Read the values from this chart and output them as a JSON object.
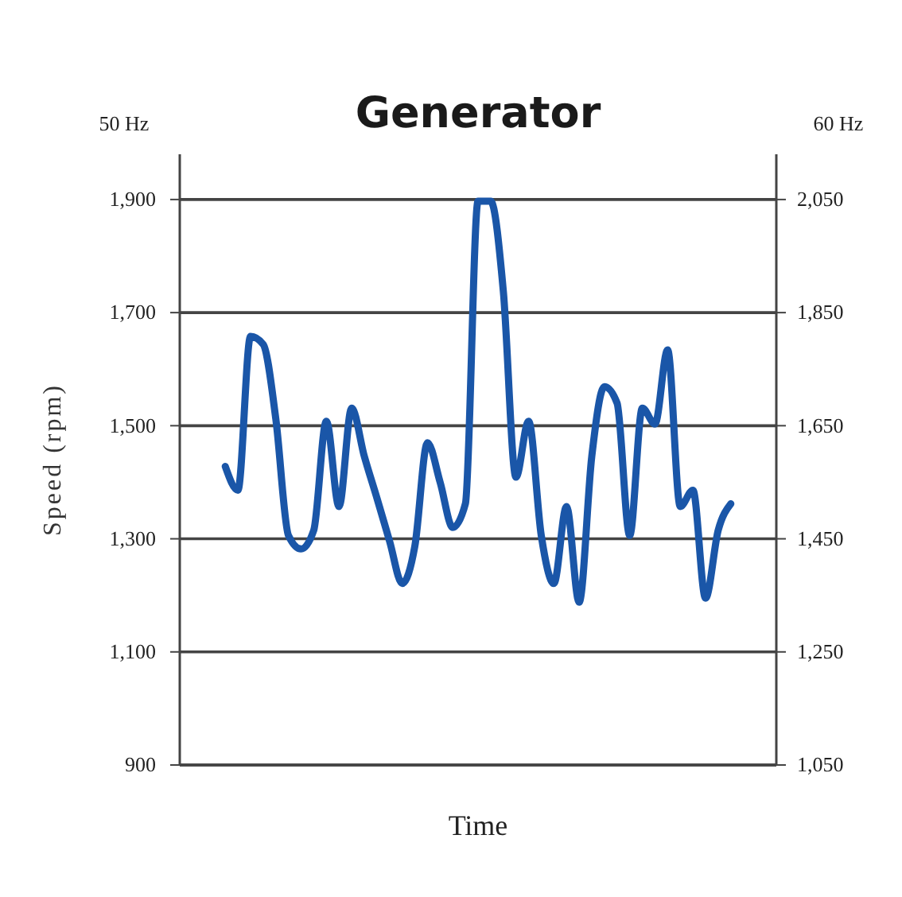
{
  "chart_data": {
    "type": "line",
    "title": "Generator",
    "xlabel": "Time",
    "ylabel": "Speed (rpm)",
    "annotations": [
      "50 Hz",
      "60 Hz"
    ],
    "categories": [
      null,
      null,
      null,
      null,
      null,
      null,
      null,
      null,
      null,
      null,
      null,
      null,
      null,
      null,
      null,
      null,
      null,
      null,
      null,
      null,
      null,
      null,
      null,
      null,
      null,
      null,
      null,
      null,
      null,
      null,
      null,
      null,
      null,
      null,
      null,
      null,
      null,
      null,
      null,
      null,
      null
    ],
    "series": [
      {
        "color": "#1a56a8",
        "values": [
          1428,
          1386,
          1658,
          1644,
          1512,
          1306,
          1282,
          1315,
          1508,
          1357,
          1531,
          1446,
          1372,
          1296,
          1221,
          1287,
          1470,
          1400,
          1320,
          1362,
          1897,
          1897,
          1738,
          1409,
          1508,
          1306,
          1221,
          1357,
          1188,
          1446,
          1569,
          1540,
          1306,
          1531,
          1503,
          1634,
          1357,
          1386,
          1195,
          1315,
          1362
        ]
      }
    ],
    "ylim": [
      900,
      1980
    ],
    "yticks": [
      {
        "value": 900,
        "label": "900"
      },
      {
        "value": 1100,
        "label": "1,100"
      },
      {
        "value": 1300,
        "label": "1,300"
      },
      {
        "value": 1500,
        "label": "1,500"
      },
      {
        "value": 1700,
        "label": "1,700"
      },
      {
        "value": 1900,
        "label": "1,900"
      }
    ],
    "y2lim": [
      1050,
      2130
    ],
    "y2ticks": [
      {
        "value": 1050,
        "label": "1,050"
      },
      {
        "value": 1250,
        "label": "1,250"
      },
      {
        "value": 1450,
        "label": "1,450"
      },
      {
        "value": 1650,
        "label": "1,650"
      },
      {
        "value": 1850,
        "label": "1,850"
      },
      {
        "value": 2050,
        "label": "2,050"
      }
    ],
    "grid": "y",
    "tick_labels": "y",
    "line_style": "solid"
  }
}
